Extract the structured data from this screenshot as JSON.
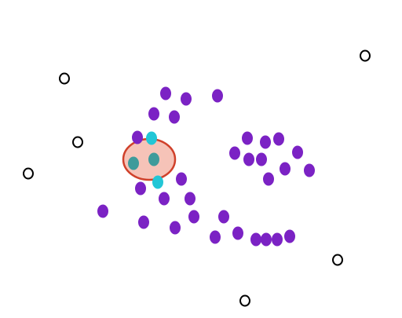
{
  "colors": {
    "background": "#ffffff",
    "purple_point": "#7b22c4",
    "cyan_point": "#22c6d6",
    "hollow_point_stroke": "#000000",
    "ellipse_fill": "#f6c3b8",
    "ellipse_stroke": "#d0412b",
    "overlap_point": "#3f9b9b"
  },
  "points": {
    "purple": [
      {
        "id": "p1"
      },
      {
        "id": "p2"
      },
      {
        "id": "p3"
      },
      {
        "id": "p4"
      },
      {
        "id": "p5"
      },
      {
        "id": "p6"
      },
      {
        "id": "p7"
      },
      {
        "id": "p8"
      },
      {
        "id": "p9"
      },
      {
        "id": "p10"
      },
      {
        "id": "p11"
      },
      {
        "id": "p12"
      },
      {
        "id": "p13"
      },
      {
        "id": "p14"
      },
      {
        "id": "p15"
      },
      {
        "id": "p16"
      },
      {
        "id": "p17"
      },
      {
        "id": "p18"
      },
      {
        "id": "p19"
      },
      {
        "id": "p20"
      },
      {
        "id": "p21"
      },
      {
        "id": "p22"
      },
      {
        "id": "p23"
      },
      {
        "id": "p24"
      },
      {
        "id": "p25"
      },
      {
        "id": "p26"
      },
      {
        "id": "p27"
      },
      {
        "id": "p28"
      },
      {
        "id": "p29"
      },
      {
        "id": "p30"
      },
      {
        "id": "p31"
      },
      {
        "id": "p32"
      }
    ],
    "cyan": [
      {
        "id": "c1"
      },
      {
        "id": "c2"
      }
    ],
    "overlap": [
      {
        "id": "o1"
      },
      {
        "id": "o2"
      }
    ],
    "hollow": [
      {
        "id": "h1"
      },
      {
        "id": "h2"
      },
      {
        "id": "h3"
      },
      {
        "id": "h4"
      },
      {
        "id": "h5"
      },
      {
        "id": "h6"
      }
    ]
  }
}
